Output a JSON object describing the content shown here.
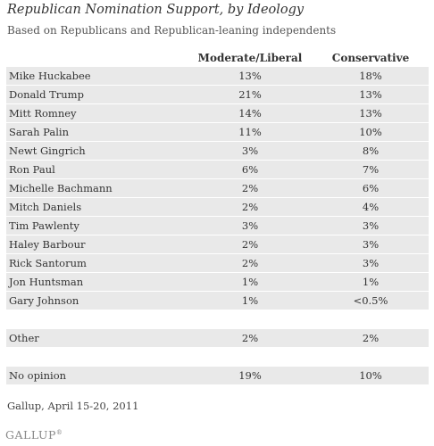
{
  "title": "Republican Nomination Support, by Ideology",
  "subtitle": "Based on Republicans and Republican-leaning independents",
  "source": "Gallup, April 15-20, 2011",
  "logo": "GALLUP",
  "chart_data": {
    "type": "table",
    "title": "Republican Nomination Support, by Ideology",
    "subtitle": "Based on Republicans and Republican-leaning independents",
    "columns": [
      "",
      "Moderate/Liberal",
      "Conservative"
    ],
    "rows": [
      {
        "name": "Mike Huckabee",
        "moderate_liberal": "13%",
        "conservative": "18%"
      },
      {
        "name": "Donald Trump",
        "moderate_liberal": "21%",
        "conservative": "13%"
      },
      {
        "name": "Mitt Romney",
        "moderate_liberal": "14%",
        "conservative": "13%"
      },
      {
        "name": "Sarah Palin",
        "moderate_liberal": "11%",
        "conservative": "10%"
      },
      {
        "name": "Newt Gingrich",
        "moderate_liberal": "3%",
        "conservative": "8%"
      },
      {
        "name": "Ron Paul",
        "moderate_liberal": "6%",
        "conservative": "7%"
      },
      {
        "name": "Michelle Bachmann",
        "moderate_liberal": "2%",
        "conservative": "6%"
      },
      {
        "name": "Mitch Daniels",
        "moderate_liberal": "2%",
        "conservative": "4%"
      },
      {
        "name": "Tim Pawlenty",
        "moderate_liberal": "3%",
        "conservative": "3%"
      },
      {
        "name": "Haley Barbour",
        "moderate_liberal": "2%",
        "conservative": "3%"
      },
      {
        "name": "Rick Santorum",
        "moderate_liberal": "2%",
        "conservative": "3%"
      },
      {
        "name": "Jon Huntsman",
        "moderate_liberal": "1%",
        "conservative": "1%"
      },
      {
        "name": "Gary Johnson",
        "moderate_liberal": "1%",
        "conservative": "<0.5%"
      },
      {
        "name": "",
        "moderate_liberal": "",
        "conservative": ""
      },
      {
        "name": "Other",
        "moderate_liberal": "2%",
        "conservative": "2%"
      },
      {
        "name": "",
        "moderate_liberal": "",
        "conservative": ""
      },
      {
        "name": "No opinion",
        "moderate_liberal": "19%",
        "conservative": "10%"
      }
    ]
  }
}
